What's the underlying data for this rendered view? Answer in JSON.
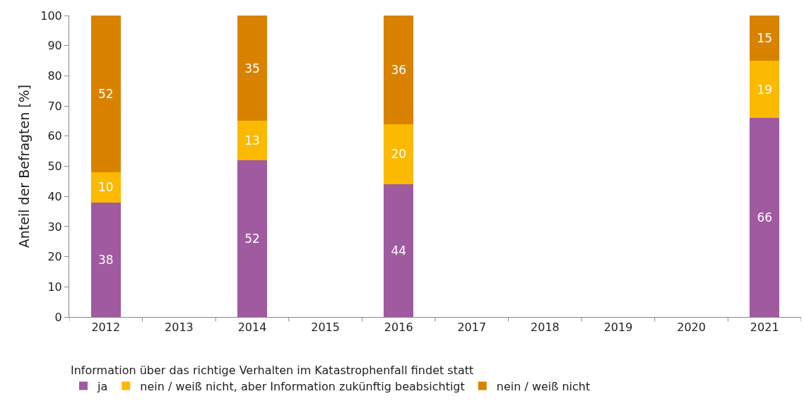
{
  "chart_data": {
    "type": "bar",
    "stacked": true,
    "data_labels": true,
    "ylabel": "Anteil der Befragten [%]",
    "legend_title": "Information über das richtige Verhalten im Katastrophenfall findet statt",
    "legend": "bottom",
    "categories": [
      "2012",
      "2013",
      "2014",
      "2015",
      "2016",
      "2017",
      "2018",
      "2019",
      "2020",
      "2021"
    ],
    "ylim": [
      0,
      100
    ],
    "yticks": [
      0,
      10,
      20,
      30,
      40,
      50,
      60,
      70,
      80,
      90,
      100
    ],
    "series": [
      {
        "name": "ja",
        "color": "#a05a9f",
        "values": [
          38,
          null,
          52,
          null,
          44,
          null,
          null,
          null,
          null,
          66
        ]
      },
      {
        "name": "nein / weiß nicht, aber Information zukünftig beabsichtigt",
        "color": "#fbb900",
        "values": [
          10,
          null,
          13,
          null,
          20,
          null,
          null,
          null,
          null,
          19
        ]
      },
      {
        "name": "nein / weiß nicht",
        "color": "#d98200",
        "values": [
          52,
          null,
          35,
          null,
          36,
          null,
          null,
          null,
          null,
          15
        ]
      }
    ]
  }
}
